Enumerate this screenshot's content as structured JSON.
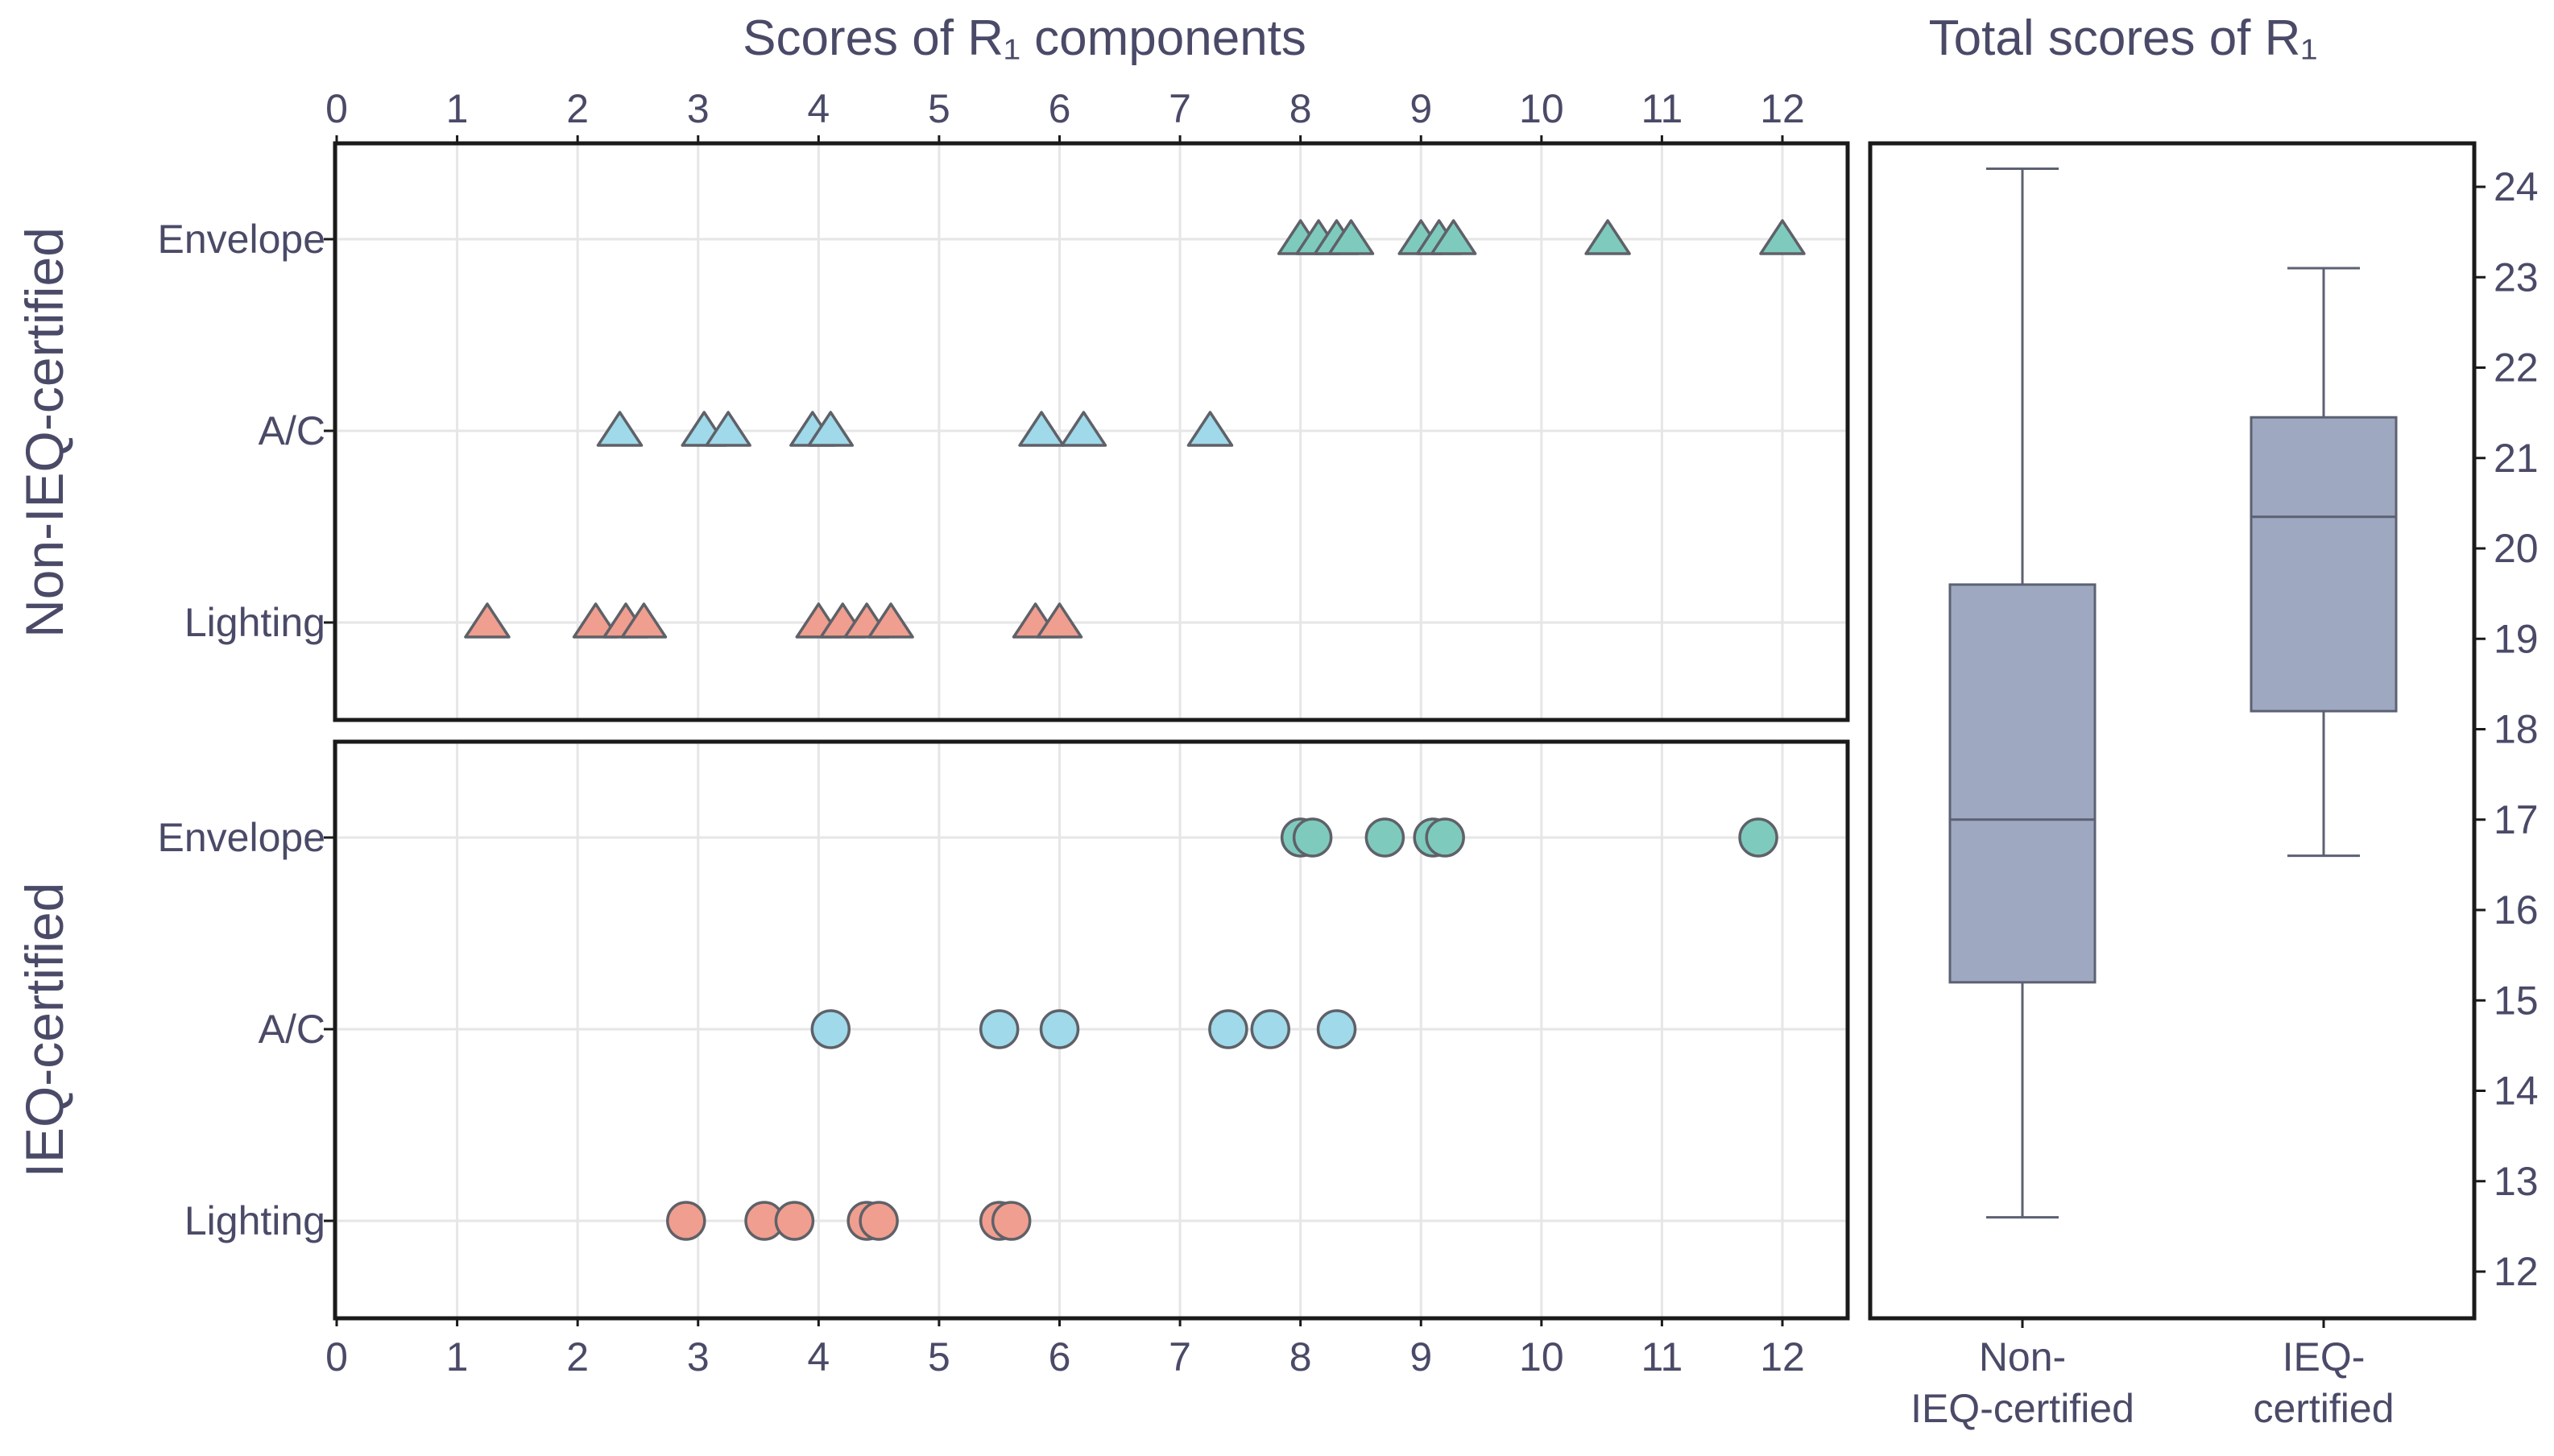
{
  "colors": {
    "text": "#4a4a68",
    "frame": "#1a1a1a",
    "grid": "#e6e6e6",
    "marker_edge": "#5f6168",
    "envelope": "#7ecbbd",
    "ac": "#9fd9ea",
    "lighting": "#f09e8f",
    "box_fill": "#9ea9c1",
    "box_line": "#5c6173"
  },
  "chart_data": [
    {
      "type": "scatter",
      "title": "Scores of R₁ components",
      "xlabel": "Scores of R₁ components",
      "xlim": [
        0,
        12.5
      ],
      "x_ticks": [
        0,
        1,
        2,
        3,
        4,
        5,
        6,
        7,
        8,
        9,
        10,
        11,
        12
      ],
      "x_tick_labels": [
        "0",
        "1",
        "2",
        "3",
        "4",
        "5",
        "6",
        "7",
        "8",
        "9",
        "10",
        "11",
        "12"
      ],
      "categories": [
        "Envelope",
        "A/C",
        "Lighting"
      ],
      "panels": [
        {
          "name": "Non-IEQ-certified",
          "marker": "triangle",
          "series": [
            {
              "name": "Envelope",
              "color_key": "envelope",
              "values": [
                8.0,
                8.15,
                8.3,
                8.42,
                9.0,
                9.15,
                9.27,
                10.55,
                12.0
              ]
            },
            {
              "name": "A/C",
              "color_key": "ac",
              "values": [
                2.35,
                3.05,
                3.25,
                3.95,
                4.1,
                5.85,
                6.2,
                7.25
              ]
            },
            {
              "name": "Lighting",
              "color_key": "lighting",
              "values": [
                1.25,
                2.15,
                2.4,
                2.55,
                4.0,
                4.2,
                4.4,
                4.6,
                5.8,
                6.0
              ]
            }
          ]
        },
        {
          "name": "IEQ-certified",
          "marker": "circle",
          "series": [
            {
              "name": "Envelope",
              "color_key": "envelope",
              "values": [
                8.0,
                8.1,
                8.7,
                9.1,
                9.2,
                11.8
              ]
            },
            {
              "name": "A/C",
              "color_key": "ac",
              "values": [
                4.1,
                5.5,
                6.0,
                7.4,
                7.75,
                8.3
              ]
            },
            {
              "name": "Lighting",
              "color_key": "lighting",
              "values": [
                2.9,
                3.55,
                3.8,
                4.4,
                4.5,
                5.5,
                5.6
              ]
            }
          ]
        }
      ]
    },
    {
      "type": "box",
      "title": "Total scores of R₁",
      "ylim": [
        11.5,
        24.5
      ],
      "y_ticks": [
        12,
        13,
        14,
        15,
        16,
        17,
        18,
        19,
        20,
        21,
        22,
        23,
        24
      ],
      "y_tick_labels": [
        "12",
        "13",
        "14",
        "15",
        "16",
        "17",
        "18",
        "19",
        "20",
        "21",
        "22",
        "23",
        "24"
      ],
      "groups": [
        {
          "label_lines": [
            "Non-",
            "IEQ-certified"
          ],
          "min": 12.6,
          "q1": 15.2,
          "median": 17.0,
          "q3": 19.6,
          "max": 24.2
        },
        {
          "label_lines": [
            "IEQ-",
            "certified"
          ],
          "min": 16.6,
          "q1": 18.2,
          "median": 20.35,
          "q3": 21.45,
          "max": 23.1
        }
      ]
    }
  ]
}
